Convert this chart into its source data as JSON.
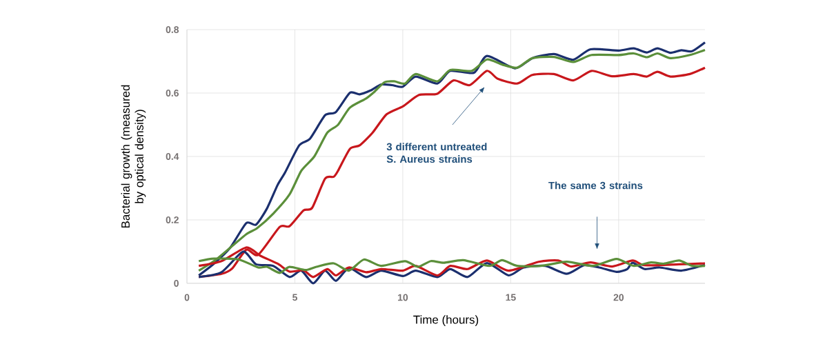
{
  "chart_data": {
    "type": "line",
    "xlabel": "Time (hours)",
    "ylabel": "Bacterial growth (measured by optical density)",
    "xlim": [
      0,
      24
    ],
    "ylim": [
      0,
      0.8
    ],
    "xticks": [
      0,
      5,
      10,
      15,
      20
    ],
    "yticks": [
      0,
      0.2,
      0.4,
      0.6,
      0.8
    ],
    "grid": true,
    "marker": "none",
    "line_style": "solid",
    "series": [
      {
        "color": "#1b2f6e",
        "x": [
          0.55,
          1.25,
          2.0,
          2.75,
          3.2,
          3.7,
          4.2,
          4.55,
          5.2,
          5.7,
          6.4,
          6.9,
          7.55,
          8.0,
          8.5,
          9.0,
          9.5,
          10.0,
          10.6,
          11.6,
          12.2,
          13.3,
          13.9,
          15.2,
          16.0,
          17.0,
          17.9,
          18.7,
          20.0,
          20.7,
          21.3,
          21.8,
          22.4,
          22.9,
          23.4,
          24.0
        ],
        "values": [
          0.025,
          0.062,
          0.112,
          0.19,
          0.185,
          0.235,
          0.31,
          0.35,
          0.435,
          0.456,
          0.53,
          0.54,
          0.601,
          0.596,
          0.608,
          0.627,
          0.625,
          0.62,
          0.652,
          0.63,
          0.67,
          0.664,
          0.717,
          0.678,
          0.71,
          0.723,
          0.705,
          0.738,
          0.734,
          0.741,
          0.728,
          0.741,
          0.727,
          0.735,
          0.732,
          0.76
        ]
      },
      {
        "color": "#5b8f3a",
        "x": [
          0.55,
          1.25,
          2.0,
          2.75,
          3.25,
          4.0,
          4.75,
          5.3,
          5.9,
          6.5,
          7.0,
          7.55,
          8.3,
          8.7,
          9.15,
          9.6,
          10.1,
          10.6,
          11.6,
          12.2,
          13.2,
          13.9,
          14.6,
          15.3,
          16.0,
          17.0,
          17.9,
          18.75,
          20.0,
          20.7,
          21.3,
          21.8,
          22.4,
          23.3,
          24.0
        ],
        "values": [
          0.04,
          0.07,
          0.112,
          0.155,
          0.174,
          0.22,
          0.28,
          0.355,
          0.4,
          0.475,
          0.5,
          0.554,
          0.583,
          0.605,
          0.634,
          0.637,
          0.63,
          0.66,
          0.637,
          0.673,
          0.67,
          0.706,
          0.69,
          0.68,
          0.71,
          0.714,
          0.698,
          0.72,
          0.72,
          0.725,
          0.713,
          0.725,
          0.71,
          0.72,
          0.736
        ]
      },
      {
        "color": "#c8171c",
        "x": [
          0.55,
          1.6,
          2.1,
          2.75,
          3.3,
          4.3,
          4.75,
          5.4,
          5.8,
          6.4,
          6.8,
          7.0,
          7.55,
          8.0,
          8.6,
          9.25,
          10.0,
          10.75,
          11.6,
          12.35,
          13.1,
          13.9,
          14.4,
          15.3,
          16.0,
          17.0,
          17.9,
          18.75,
          19.7,
          20.7,
          21.3,
          21.8,
          22.4,
          23.3,
          24.0
        ],
        "values": [
          0.02,
          0.03,
          0.047,
          0.106,
          0.09,
          0.178,
          0.18,
          0.23,
          0.238,
          0.33,
          0.336,
          0.355,
          0.424,
          0.435,
          0.475,
          0.533,
          0.558,
          0.594,
          0.598,
          0.64,
          0.625,
          0.67,
          0.645,
          0.63,
          0.657,
          0.66,
          0.64,
          0.67,
          0.653,
          0.66,
          0.652,
          0.667,
          0.652,
          0.66,
          0.68
        ]
      },
      {
        "color": "#1b2f6e",
        "x": [
          0.55,
          1.6,
          2.6,
          3.2,
          4.0,
          4.75,
          5.3,
          5.85,
          6.4,
          6.9,
          7.5,
          8.3,
          9.0,
          10.0,
          10.6,
          11.6,
          12.2,
          13.0,
          13.9,
          14.9,
          15.6,
          16.6,
          17.6,
          18.4,
          19.1,
          19.9,
          20.4,
          20.65,
          21.2,
          21.9,
          22.9,
          24.0
        ],
        "values": [
          0.02,
          0.035,
          0.1,
          0.06,
          0.055,
          0.02,
          0.04,
          0.0,
          0.04,
          0.008,
          0.048,
          0.02,
          0.04,
          0.023,
          0.04,
          0.02,
          0.045,
          0.02,
          0.064,
          0.025,
          0.05,
          0.055,
          0.03,
          0.057,
          0.05,
          0.036,
          0.045,
          0.065,
          0.045,
          0.05,
          0.04,
          0.058
        ]
      },
      {
        "color": "#c8171c",
        "x": [
          0.55,
          1.6,
          2.75,
          3.4,
          4.2,
          4.75,
          5.4,
          5.85,
          6.5,
          6.9,
          7.5,
          8.3,
          9.0,
          10.0,
          10.6,
          11.6,
          12.2,
          13.0,
          13.9,
          14.9,
          16.3,
          17.2,
          17.8,
          18.7,
          19.7,
          20.65,
          21.2,
          22.8,
          24.0
        ],
        "values": [
          0.055,
          0.07,
          0.113,
          0.087,
          0.062,
          0.037,
          0.041,
          0.02,
          0.045,
          0.025,
          0.05,
          0.035,
          0.045,
          0.04,
          0.055,
          0.025,
          0.055,
          0.045,
          0.072,
          0.04,
          0.068,
          0.072,
          0.053,
          0.066,
          0.053,
          0.072,
          0.057,
          0.06,
          0.063
        ]
      },
      {
        "color": "#5b8f3a",
        "x": [
          0.55,
          1.25,
          2.4,
          3.3,
          3.7,
          4.3,
          4.75,
          5.5,
          6.0,
          6.8,
          7.5,
          8.2,
          9.0,
          10.1,
          10.7,
          11.3,
          11.9,
          12.8,
          14.0,
          14.6,
          15.3,
          16.4,
          17.6,
          18.8,
          19.9,
          20.7,
          21.5,
          22.1,
          22.8,
          23.4,
          24.0
        ],
        "values": [
          0.07,
          0.078,
          0.075,
          0.05,
          0.052,
          0.033,
          0.052,
          0.042,
          0.052,
          0.063,
          0.04,
          0.075,
          0.055,
          0.07,
          0.052,
          0.07,
          0.065,
          0.073,
          0.055,
          0.073,
          0.055,
          0.055,
          0.068,
          0.055,
          0.077,
          0.055,
          0.066,
          0.062,
          0.072,
          0.055,
          0.055
        ]
      }
    ],
    "annotations": [
      "3 different untreated S. Aureus strains",
      "The same 3 strains"
    ]
  }
}
